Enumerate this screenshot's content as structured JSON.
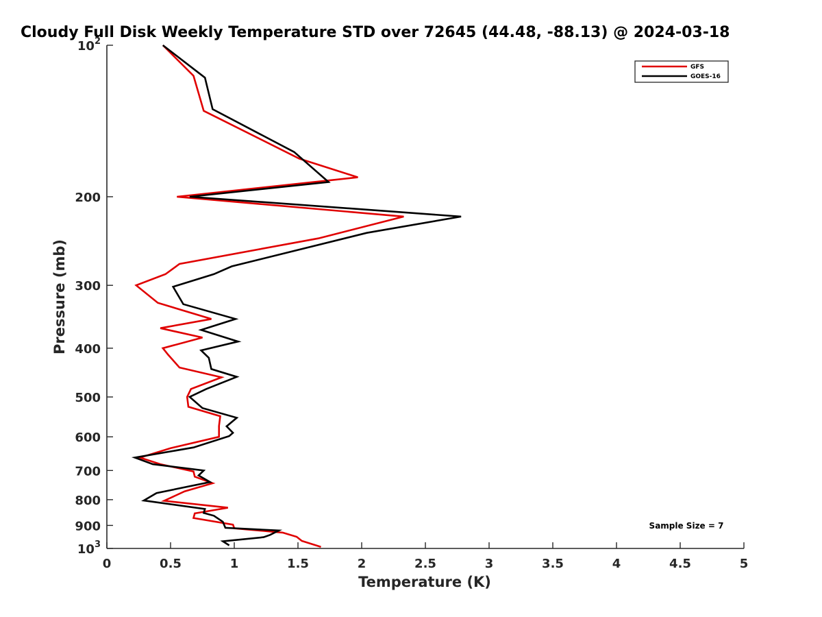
{
  "chart_data": {
    "type": "line",
    "title": "Cloudy Full Disk Weekly Temperature STD over 72645 (44.48, -88.13) @ 2024-03-18",
    "xlabel": "Temperature (K)",
    "ylabel": "Pressure (mb)",
    "xlim": [
      0,
      5
    ],
    "ylim": [
      100,
      1000
    ],
    "y_scale": "log",
    "y_reversed": true,
    "grid": false,
    "legend_position": "top-right",
    "x_ticks": [
      {
        "value": 0,
        "label": "0"
      },
      {
        "value": 0.5,
        "label": "0.5"
      },
      {
        "value": 1,
        "label": "1"
      },
      {
        "value": 1.5,
        "label": "1.5"
      },
      {
        "value": 2,
        "label": "2"
      },
      {
        "value": 2.5,
        "label": "2.5"
      },
      {
        "value": 3,
        "label": "3"
      },
      {
        "value": 3.5,
        "label": "3.5"
      },
      {
        "value": 4,
        "label": "4"
      },
      {
        "value": 4.5,
        "label": "4.5"
      },
      {
        "value": 5,
        "label": "5"
      }
    ],
    "y_ticks": [
      {
        "value": 100,
        "base": "10",
        "exp": "2",
        "label": ""
      },
      {
        "value": 200,
        "label": "200"
      },
      {
        "value": 300,
        "label": "300"
      },
      {
        "value": 400,
        "label": "400"
      },
      {
        "value": 500,
        "label": "500"
      },
      {
        "value": 600,
        "label": "600"
      },
      {
        "value": 700,
        "label": "700"
      },
      {
        "value": 800,
        "label": "800"
      },
      {
        "value": 900,
        "label": "900"
      },
      {
        "value": 1000,
        "base": "10",
        "exp": "3",
        "label": ""
      }
    ],
    "series": [
      {
        "name": "GFS",
        "color": "#e00000",
        "points": [
          [
            0.44,
            100
          ],
          [
            0.68,
            115
          ],
          [
            0.76,
            135
          ],
          [
            1.51,
            168
          ],
          [
            1.97,
            183
          ],
          [
            0.55,
            200
          ],
          [
            2.33,
            219
          ],
          [
            1.66,
            242
          ],
          [
            0.57,
            272
          ],
          [
            0.46,
            285
          ],
          [
            0.23,
            300
          ],
          [
            0.4,
            325
          ],
          [
            0.82,
            350
          ],
          [
            0.42,
            365
          ],
          [
            0.75,
            381
          ],
          [
            0.44,
            400
          ],
          [
            0.48,
            412
          ],
          [
            0.57,
            437
          ],
          [
            0.9,
            457
          ],
          [
            0.66,
            482
          ],
          [
            0.63,
            500
          ],
          [
            0.64,
            523
          ],
          [
            0.89,
            546
          ],
          [
            0.88,
            571
          ],
          [
            0.88,
            600
          ],
          [
            0.5,
            632
          ],
          [
            0.26,
            660
          ],
          [
            0.42,
            680
          ],
          [
            0.68,
            703
          ],
          [
            0.69,
            720
          ],
          [
            0.83,
            742
          ],
          [
            0.61,
            770
          ],
          [
            0.45,
            804
          ],
          [
            0.95,
            830
          ],
          [
            0.69,
            852
          ],
          [
            0.68,
            870
          ],
          [
            0.99,
            897
          ],
          [
            1.0,
            912
          ],
          [
            1.38,
            930
          ],
          [
            1.49,
            948
          ],
          [
            1.53,
            966
          ],
          [
            1.68,
            993
          ]
        ]
      },
      {
        "name": "GOES-16",
        "color": "#000000",
        "points": [
          [
            0.44,
            100
          ],
          [
            0.77,
            116
          ],
          [
            0.83,
            134
          ],
          [
            1.47,
            163
          ],
          [
            1.74,
            187
          ],
          [
            0.65,
            200
          ],
          [
            2.78,
            219
          ],
          [
            2.04,
            236
          ],
          [
            0.98,
            275
          ],
          [
            0.84,
            285
          ],
          [
            0.52,
            302
          ],
          [
            0.6,
            327
          ],
          [
            1.01,
            350
          ],
          [
            0.74,
            368
          ],
          [
            1.03,
            388
          ],
          [
            0.74,
            404
          ],
          [
            0.8,
            418
          ],
          [
            0.82,
            440
          ],
          [
            1.02,
            456
          ],
          [
            0.78,
            482
          ],
          [
            0.65,
            500
          ],
          [
            0.75,
            526
          ],
          [
            1.02,
            550
          ],
          [
            0.94,
            572
          ],
          [
            0.99,
            589
          ],
          [
            0.96,
            598
          ],
          [
            0.68,
            630
          ],
          [
            0.22,
            660
          ],
          [
            0.36,
            680
          ],
          [
            0.76,
            700
          ],
          [
            0.72,
            716
          ],
          [
            0.81,
            738
          ],
          [
            0.39,
            776
          ],
          [
            0.29,
            803
          ],
          [
            0.77,
            835
          ],
          [
            0.76,
            850
          ],
          [
            0.84,
            861
          ],
          [
            0.91,
            885
          ],
          [
            0.93,
            910
          ],
          [
            1.35,
            921
          ],
          [
            1.28,
            940
          ],
          [
            1.23,
            950
          ],
          [
            0.91,
            968
          ],
          [
            0.96,
            986
          ]
        ]
      }
    ],
    "annotations": [
      {
        "text": "Sample Size = 7"
      }
    ]
  }
}
